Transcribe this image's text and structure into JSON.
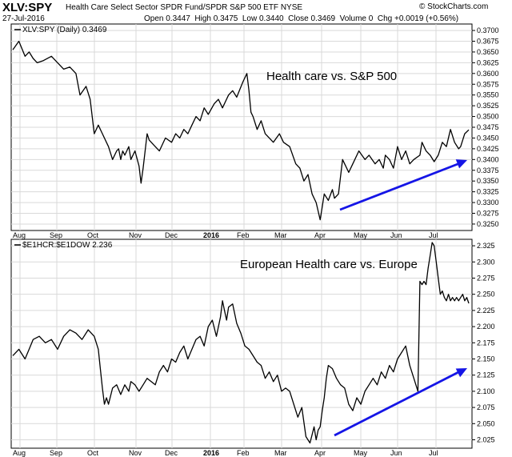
{
  "header": {
    "ticker": "XLV:SPY",
    "description": "Health Care Select Sector SPDR Fund/SPDR S&P 500 ETF  NYSE",
    "date": "27-Jul-2016",
    "ohlc": "Open 0.3447  High 0.3475  Low 0.3440  Close 0.3469  Volume 0  Chg +0.0019 (+0.56%)",
    "logo": "© StockCharts.com"
  },
  "colors": {
    "price_line": "#000000",
    "trend_arrow": "#1515e6",
    "grid": "#d9d9d9"
  },
  "chart_data": [
    {
      "type": "line",
      "legend": "XLV:SPY (Daily) 0.3469",
      "annotation": "Health care vs. S&P 500",
      "ylim": [
        0.3235,
        0.3715
      ],
      "yticks": [
        "0.3250",
        "0.3275",
        "0.3300",
        "0.3325",
        "0.3350",
        "0.3375",
        "0.3400",
        "0.3425",
        "0.3450",
        "0.3475",
        "0.3500",
        "0.3525",
        "0.3550",
        "0.3575",
        "0.3600",
        "0.3625",
        "0.3650",
        "0.3675",
        "0.3700"
      ],
      "xlabels": [
        "Aug",
        "Sep",
        "Oct",
        "Nov",
        "Dec",
        "2016",
        "Feb",
        "Mar",
        "Apr",
        "May",
        "Jun",
        "Jul"
      ],
      "series": {
        "x": [
          0,
          3,
          6,
          8,
          10,
          12,
          15,
          19,
          22,
          25,
          28,
          31,
          33,
          36,
          38,
          40,
          42,
          44,
          47,
          49,
          51,
          52,
          53,
          54,
          55,
          57,
          58,
          60,
          62,
          63,
          64,
          65,
          66,
          67,
          70,
          72,
          75,
          78,
          80,
          82,
          84,
          86,
          88,
          90,
          92,
          94,
          96,
          99,
          101,
          103,
          106,
          108,
          110,
          113,
          115,
          116,
          117,
          118,
          120,
          122,
          124,
          126,
          128,
          131,
          133,
          136,
          139,
          141,
          143,
          145,
          147,
          149,
          151,
          152,
          153,
          155,
          157,
          158,
          160,
          162,
          165,
          167,
          170,
          173,
          175,
          178,
          180,
          182,
          183,
          185,
          187,
          189,
          191,
          193,
          195,
          197,
          200,
          201,
          203,
          205,
          207,
          209,
          211,
          213,
          215,
          217,
          219,
          220,
          222,
          224
        ],
        "y": [
          0.3655,
          0.3675,
          0.364,
          0.365,
          0.3635,
          0.3625,
          0.363,
          0.364,
          0.3625,
          0.361,
          0.3615,
          0.36,
          0.355,
          0.357,
          0.354,
          0.346,
          0.348,
          0.346,
          0.343,
          0.34,
          0.342,
          0.3425,
          0.34,
          0.342,
          0.341,
          0.343,
          0.34,
          0.342,
          0.3385,
          0.3345,
          0.338,
          0.342,
          0.346,
          0.3445,
          0.343,
          0.342,
          0.345,
          0.344,
          0.346,
          0.345,
          0.347,
          0.346,
          0.348,
          0.35,
          0.349,
          0.352,
          0.3505,
          0.353,
          0.354,
          0.352,
          0.355,
          0.356,
          0.3545,
          0.358,
          0.36,
          0.356,
          0.351,
          0.35,
          0.347,
          0.349,
          0.346,
          0.345,
          0.344,
          0.346,
          0.344,
          0.343,
          0.339,
          0.338,
          0.335,
          0.3365,
          0.332,
          0.33,
          0.326,
          0.329,
          0.332,
          0.3305,
          0.333,
          0.331,
          0.332,
          0.34,
          0.337,
          0.339,
          0.342,
          0.34,
          0.341,
          0.339,
          0.34,
          0.338,
          0.341,
          0.34,
          0.338,
          0.343,
          0.34,
          0.342,
          0.339,
          0.34,
          0.341,
          0.344,
          0.342,
          0.341,
          0.3395,
          0.341,
          0.344,
          0.343,
          0.347,
          0.344,
          0.3425,
          0.343,
          0.346,
          0.3469
        ]
      }
    },
    {
      "type": "line",
      "legend": "$E1HCR:$E1DOW 2.236",
      "annotation": "European Health care vs. Europe",
      "ylim": [
        2.012,
        2.335
      ],
      "yticks": [
        "2.025",
        "2.050",
        "2.075",
        "2.100",
        "2.125",
        "2.150",
        "2.175",
        "2.200",
        "2.225",
        "2.250",
        "2.275",
        "2.300",
        "2.325"
      ],
      "xlabels": [
        "Aug",
        "Sep",
        "Oct",
        "Nov",
        "Dec",
        "2016",
        "Feb",
        "Mar",
        "Apr",
        "May",
        "Jun",
        "Jul"
      ],
      "series": {
        "x": [
          0,
          3,
          6,
          8,
          10,
          13,
          16,
          19,
          22,
          25,
          28,
          31,
          34,
          37,
          40,
          42,
          43,
          44,
          45,
          46,
          47,
          49,
          51,
          53,
          55,
          57,
          58,
          60,
          62,
          64,
          66,
          68,
          70,
          72,
          74,
          76,
          78,
          80,
          82,
          84,
          86,
          88,
          90,
          92,
          94,
          96,
          98,
          100,
          102,
          103,
          104,
          105,
          106,
          108,
          110,
          112,
          114,
          116,
          118,
          120,
          122,
          124,
          126,
          128,
          130,
          132,
          134,
          136,
          138,
          140,
          142,
          144,
          146,
          148,
          149,
          150,
          151,
          152,
          153,
          154,
          155,
          157,
          159,
          161,
          163,
          165,
          167,
          169,
          171,
          173,
          175,
          177,
          179,
          181,
          183,
          185,
          187,
          189,
          191,
          193,
          195,
          197,
          199,
          200,
          201,
          202,
          203,
          204,
          205,
          206,
          207,
          208,
          209,
          210,
          211,
          212,
          213,
          214,
          215,
          216,
          217,
          218,
          219,
          220,
          221,
          222,
          223,
          224
        ],
        "y": [
          2.155,
          2.165,
          2.15,
          2.165,
          2.18,
          2.185,
          2.175,
          2.18,
          2.165,
          2.185,
          2.195,
          2.19,
          2.18,
          2.195,
          2.185,
          2.165,
          2.135,
          2.105,
          2.08,
          2.09,
          2.08,
          2.105,
          2.11,
          2.095,
          2.11,
          2.1,
          2.115,
          2.11,
          2.1,
          2.11,
          2.12,
          2.115,
          2.11,
          2.13,
          2.14,
          2.13,
          2.15,
          2.145,
          2.16,
          2.17,
          2.15,
          2.165,
          2.18,
          2.185,
          2.17,
          2.2,
          2.21,
          2.185,
          2.215,
          2.24,
          2.225,
          2.21,
          2.23,
          2.235,
          2.205,
          2.19,
          2.17,
          2.165,
          2.155,
          2.145,
          2.14,
          2.12,
          2.13,
          2.115,
          2.125,
          2.1,
          2.105,
          2.1,
          2.08,
          2.06,
          2.075,
          2.03,
          2.02,
          2.045,
          2.025,
          2.04,
          2.045,
          2.07,
          2.09,
          2.12,
          2.14,
          2.135,
          2.12,
          2.11,
          2.105,
          2.08,
          2.07,
          2.09,
          2.08,
          2.1,
          2.11,
          2.12,
          2.11,
          2.13,
          2.12,
          2.14,
          2.13,
          2.15,
          2.16,
          2.17,
          2.14,
          2.12,
          2.1,
          2.27,
          2.265,
          2.27,
          2.265,
          2.29,
          2.31,
          2.33,
          2.325,
          2.3,
          2.275,
          2.25,
          2.255,
          2.245,
          2.24,
          2.25,
          2.24,
          2.245,
          2.24,
          2.245,
          2.24,
          2.245,
          2.25,
          2.24,
          2.245,
          2.236
        ]
      }
    }
  ]
}
